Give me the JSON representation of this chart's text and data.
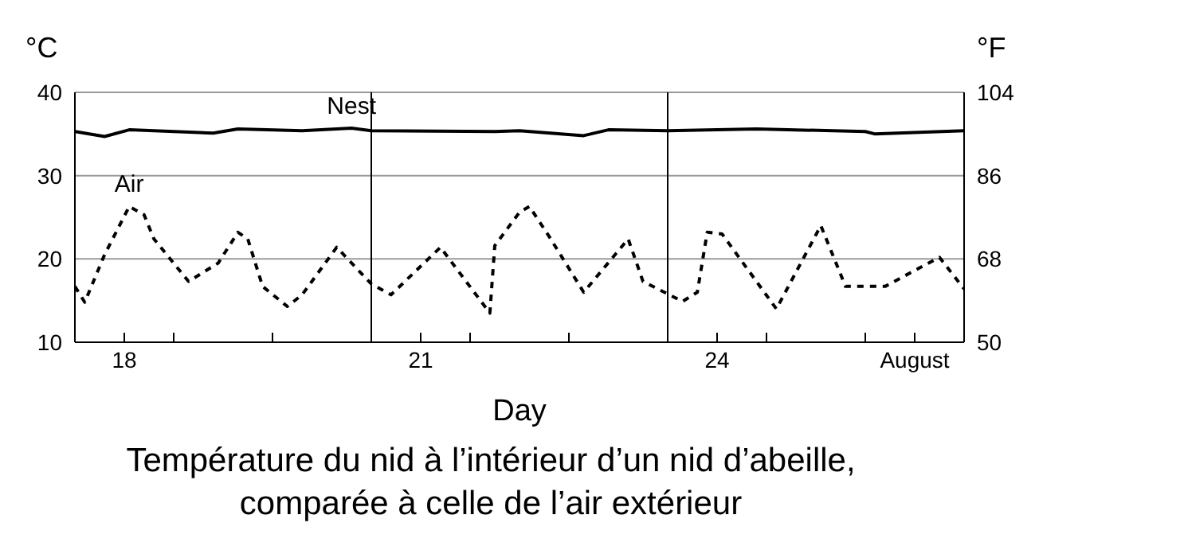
{
  "chart_data": {
    "type": "line",
    "title": "Température du nid à l’intérieur d’un nid d’abeille,\ncomparée à celle de l’air extérieur",
    "xlabel": "Day",
    "ylabel": "°C",
    "y2label": "°F",
    "xlim": [
      17.5,
      26.5
    ],
    "xticks": [
      {
        "value": 18,
        "label": "18"
      },
      {
        "value": 18.5,
        "label": null
      },
      {
        "value": 19.5,
        "label": null
      },
      {
        "value": 21,
        "label": "21"
      },
      {
        "value": 21.5,
        "label": null
      },
      {
        "value": 22.5,
        "label": null
      },
      {
        "value": 24,
        "label": "24"
      },
      {
        "value": 24.5,
        "label": null
      },
      {
        "value": 25.5,
        "label": null
      },
      {
        "value": 26,
        "label": "August"
      }
    ],
    "ylim": [
      10,
      40
    ],
    "yticks": [
      10,
      20,
      30,
      40
    ],
    "y2lim": [
      50,
      104
    ],
    "y2ticks": [
      50,
      68,
      86,
      104
    ],
    "grid": "y",
    "marker": "none",
    "ref_lines": [
      {
        "axis": "x",
        "value": 20.5,
        "color": "#000000"
      },
      {
        "axis": "x",
        "value": 23.5,
        "color": "#000000"
      }
    ],
    "series": [
      {
        "name": "Nest",
        "color": "#000000",
        "line_style": "solid",
        "x": [
          17.5,
          17.8,
          18.05,
          18.9,
          19.15,
          19.8,
          20.3,
          20.5,
          21.75,
          22.0,
          22.65,
          22.9,
          23.5,
          24.4,
          25.5,
          25.6,
          26.5
        ],
        "values": [
          35.3,
          34.7,
          35.5,
          35.1,
          35.6,
          35.4,
          35.7,
          35.4,
          35.3,
          35.4,
          34.8,
          35.5,
          35.4,
          35.6,
          35.3,
          35.0,
          35.4
        ]
      },
      {
        "name": "Air",
        "color": "#000000",
        "line_style": "dashed",
        "x": [
          17.5,
          17.6,
          17.8,
          18.05,
          18.2,
          18.3,
          18.65,
          18.95,
          19.15,
          19.25,
          19.4,
          19.65,
          19.8,
          20.15,
          20.5,
          20.7,
          21.2,
          21.7,
          21.75,
          22.0,
          22.1,
          22.3,
          22.65,
          23.1,
          23.25,
          23.65,
          23.8,
          23.9,
          24.05,
          24.6,
          25.05,
          25.3,
          25.7,
          26.25,
          26.5
        ],
        "values": [
          16.7,
          14.8,
          20.5,
          26.3,
          25.3,
          22.4,
          17.3,
          19.5,
          23.2,
          22.4,
          16.7,
          14.3,
          15.7,
          21.4,
          17.0,
          15.7,
          21.4,
          13.5,
          21.6,
          25.6,
          26.3,
          22.7,
          16.0,
          22.4,
          17.3,
          14.9,
          16.0,
          23.2,
          23.0,
          14.0,
          24.0,
          16.7,
          16.7,
          20.2,
          16.4
        ]
      }
    ]
  }
}
